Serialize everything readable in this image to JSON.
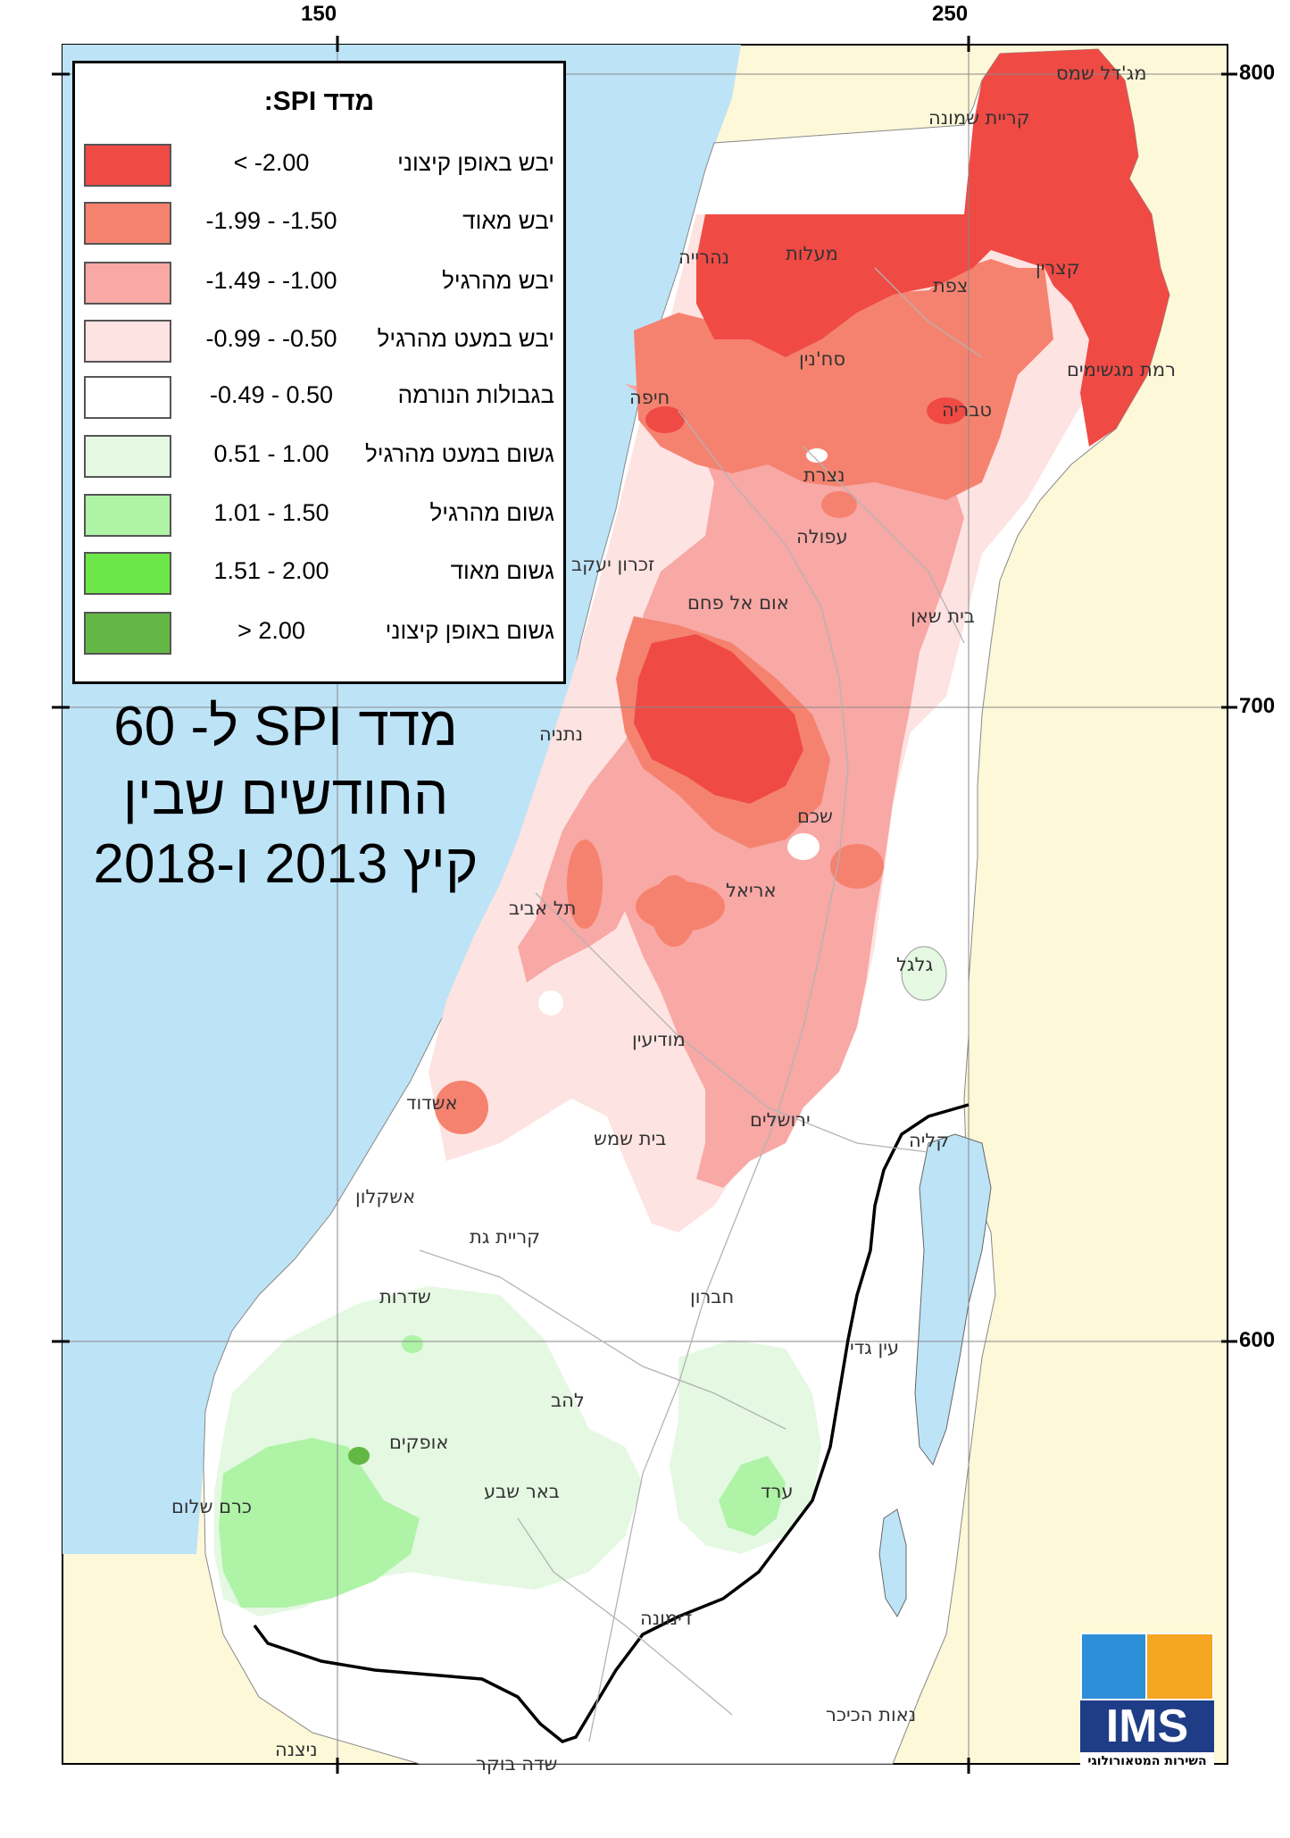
{
  "legend": {
    "title": "מדד SPI:",
    "items": [
      {
        "range": "< -2.00",
        "label": "יבש באופן קיצוני",
        "color": "#f04a45"
      },
      {
        "range": "-1.99 - -1.50",
        "label": "יבש מאוד",
        "color": "#f5826f"
      },
      {
        "range": "-1.49 - -1.00",
        "label": "יבש מהרגיל",
        "color": "#f8a8a5"
      },
      {
        "range": "-0.99 - -0.50",
        "label": "יבש במעט מהרגיל",
        "color": "#fde3e1"
      },
      {
        "range": "-0.49 - 0.50",
        "label": "בגבולות הנורמה",
        "color": "#ffffff"
      },
      {
        "range": "0.51 - 1.00",
        "label": "גשום במעט מהרגיל",
        "color": "#e4f8e2"
      },
      {
        "range": "1.01 - 1.50",
        "label": "גשום מהרגיל",
        "color": "#aef3a6"
      },
      {
        "range": "1.51 - 2.00",
        "label": "גשום מאוד",
        "color": "#6de748"
      },
      {
        "range": "> 2.00",
        "label": "גשום באופן קיצוני",
        "color": "#63b845"
      }
    ]
  },
  "map_title": {
    "line1": "מדד SPI ל- 60",
    "line2": "החודשים שבין",
    "line3": "קיץ 2013 ו-2018"
  },
  "coordinates": {
    "top": [
      "150",
      "250"
    ],
    "right": [
      "800",
      "700",
      "600"
    ]
  },
  "cities": {
    "majdal_shams": "מג'דל שמס",
    "kiryat_shmona": "קריית שמונה",
    "nahariya": "נהרייה",
    "maalot": "מעלות",
    "katzrin": "קצרין",
    "tzfat": "צפת",
    "ramat_magshimim": "רמת מגשימים",
    "sakhnin": "סח'נין",
    "haifa": "חיפה",
    "tiberias": "טבריה",
    "nazareth": "נצרת",
    "afula": "עפולה",
    "zichron": "זכרון יעקב",
    "umm_al_fahm": "אום אל פחם",
    "beit_shean": "בית שאן",
    "netanya": "נתניה",
    "shechem": "שכם",
    "ariel": "אריאל",
    "tel_aviv": "תל אביב",
    "gilgal": "גלגל",
    "modiin": "מודיעין",
    "ashdod": "אשדוד",
    "jerusalem": "ירושלים",
    "beit_shemesh": "בית שמש",
    "kalia": "קליה",
    "ashkelon": "אשקלון",
    "kiryat_gat": "קריית גת",
    "sderot": "שדרות",
    "hebron": "חברון",
    "ein_gedi": "עין גדי",
    "lehavim": "להב",
    "ofakim": "אופקים",
    "beer_sheva": "באר שבע",
    "arad": "ערד",
    "kerem_shalom": "כרם שלום",
    "dimona": "דימונה",
    "neot_hakikar": "נאות הכיכר",
    "nitzana": "ניצנה",
    "sde_boker": "שדה בוקר"
  },
  "logo": {
    "text": "IMS",
    "subtitle": "השירות המטאורולוגי"
  },
  "colors": {
    "sea": "#bde3f7",
    "land_outside": "#fdf8d8",
    "frame": "#000000"
  }
}
